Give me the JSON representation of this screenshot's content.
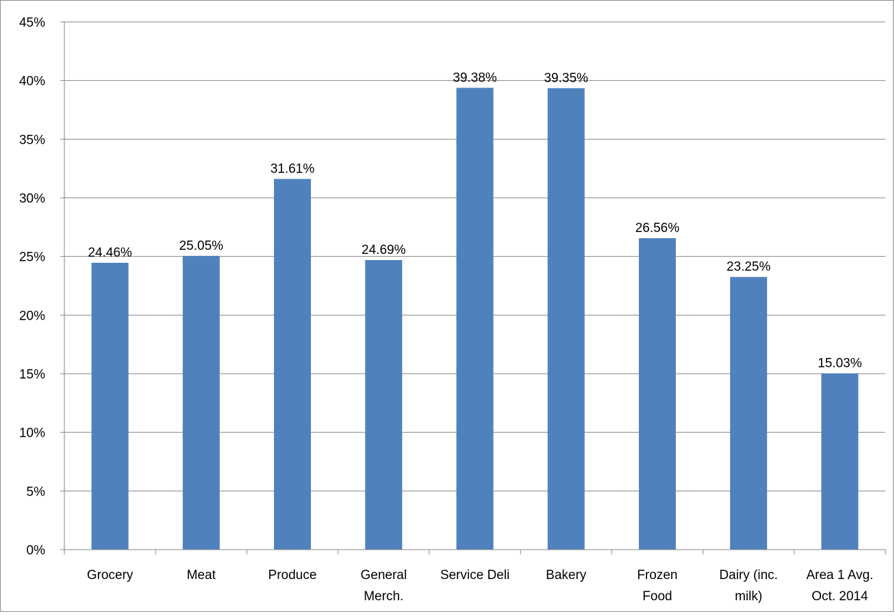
{
  "chart_data": {
    "type": "bar",
    "title": "",
    "xlabel": "",
    "ylabel": "",
    "categories": [
      [
        "Grocery"
      ],
      [
        "Meat"
      ],
      [
        "Produce"
      ],
      [
        "General",
        "Merch."
      ],
      [
        "Service Deli"
      ],
      [
        "Bakery"
      ],
      [
        "Frozen",
        "Food"
      ],
      [
        "Dairy (inc.",
        "milk)"
      ],
      [
        "Area 1 Avg.",
        "Oct. 2014"
      ]
    ],
    "values": [
      24.46,
      25.05,
      31.61,
      24.69,
      39.38,
      39.35,
      26.56,
      23.25,
      15.03
    ],
    "data_labels": [
      "24.46%",
      "25.05%",
      "31.61%",
      "24.69%",
      "39.38%",
      "39.35%",
      "26.56%",
      "23.25%",
      "15.03%"
    ],
    "ylim": [
      0,
      45
    ],
    "yticks": [
      0,
      5,
      10,
      15,
      20,
      25,
      30,
      35,
      40,
      45
    ],
    "ytick_labels": [
      "0%",
      "5%",
      "10%",
      "15%",
      "20%",
      "25%",
      "30%",
      "35%",
      "40%",
      "45%"
    ],
    "grid": true,
    "legend": "none",
    "bar_color": "#4f81bd",
    "grid_color": "#868686"
  }
}
